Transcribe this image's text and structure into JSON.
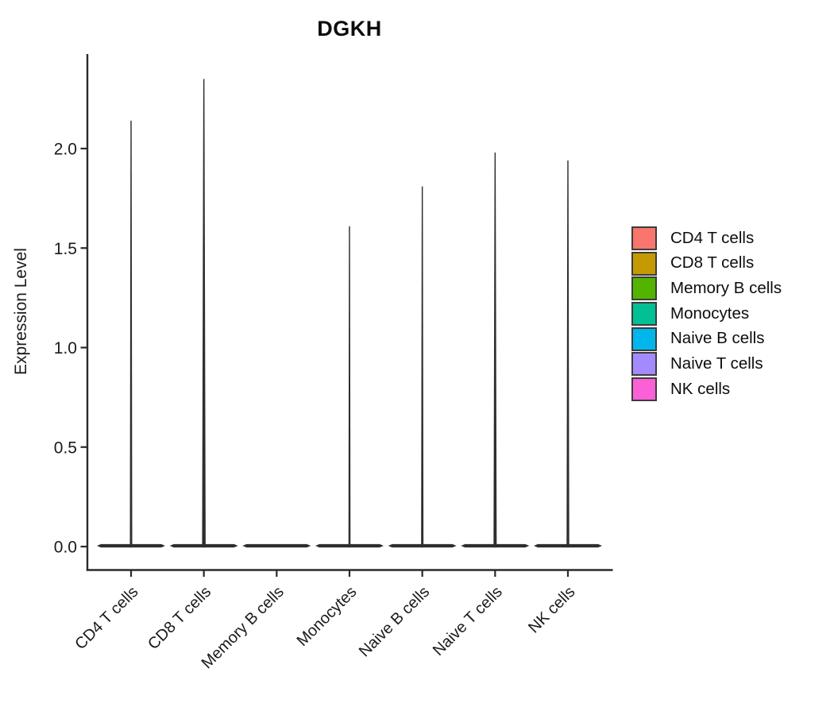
{
  "chart_data": {
    "type": "violin",
    "title": "DGKH",
    "ylabel": "Expression Level",
    "xlabel": "",
    "legend_position": "right",
    "grid": false,
    "background_color": "#ffffff",
    "axis_color": "#2a2a2a",
    "violin_outline_color": "#2e2e2e",
    "y_ticks": [
      "0.0",
      "0.5",
      "1.0",
      "1.5",
      "2.0"
    ],
    "ylim": [
      -0.12,
      2.48
    ],
    "baseline_value": 0,
    "categories": [
      "CD4 T cells",
      "CD8 T cells",
      "Memory B cells",
      "Monocytes",
      "Naive B cells",
      "Naive T cells",
      "NK cells"
    ],
    "groups": [
      {
        "label": "CD4 T cells",
        "color": "#F8766D",
        "max_expression": 2.14,
        "spike_width": 3.0
      },
      {
        "label": "CD8 T cells",
        "color": "#C49A00",
        "max_expression": 2.35,
        "spike_width": 4.5
      },
      {
        "label": "Memory B cells",
        "color": "#53B400",
        "max_expression": 0,
        "spike_width": 0
      },
      {
        "label": "Monocytes",
        "color": "#00C094",
        "max_expression": 1.61,
        "spike_width": 2.6
      },
      {
        "label": "Naive B cells",
        "color": "#00B6EB",
        "max_expression": 1.81,
        "spike_width": 3.0
      },
      {
        "label": "Naive T cells",
        "color": "#A58AFF",
        "max_expression": 1.98,
        "spike_width": 4.0
      },
      {
        "label": "NK cells",
        "color": "#FB61D7",
        "max_expression": 1.94,
        "spike_width": 3.4
      }
    ]
  }
}
